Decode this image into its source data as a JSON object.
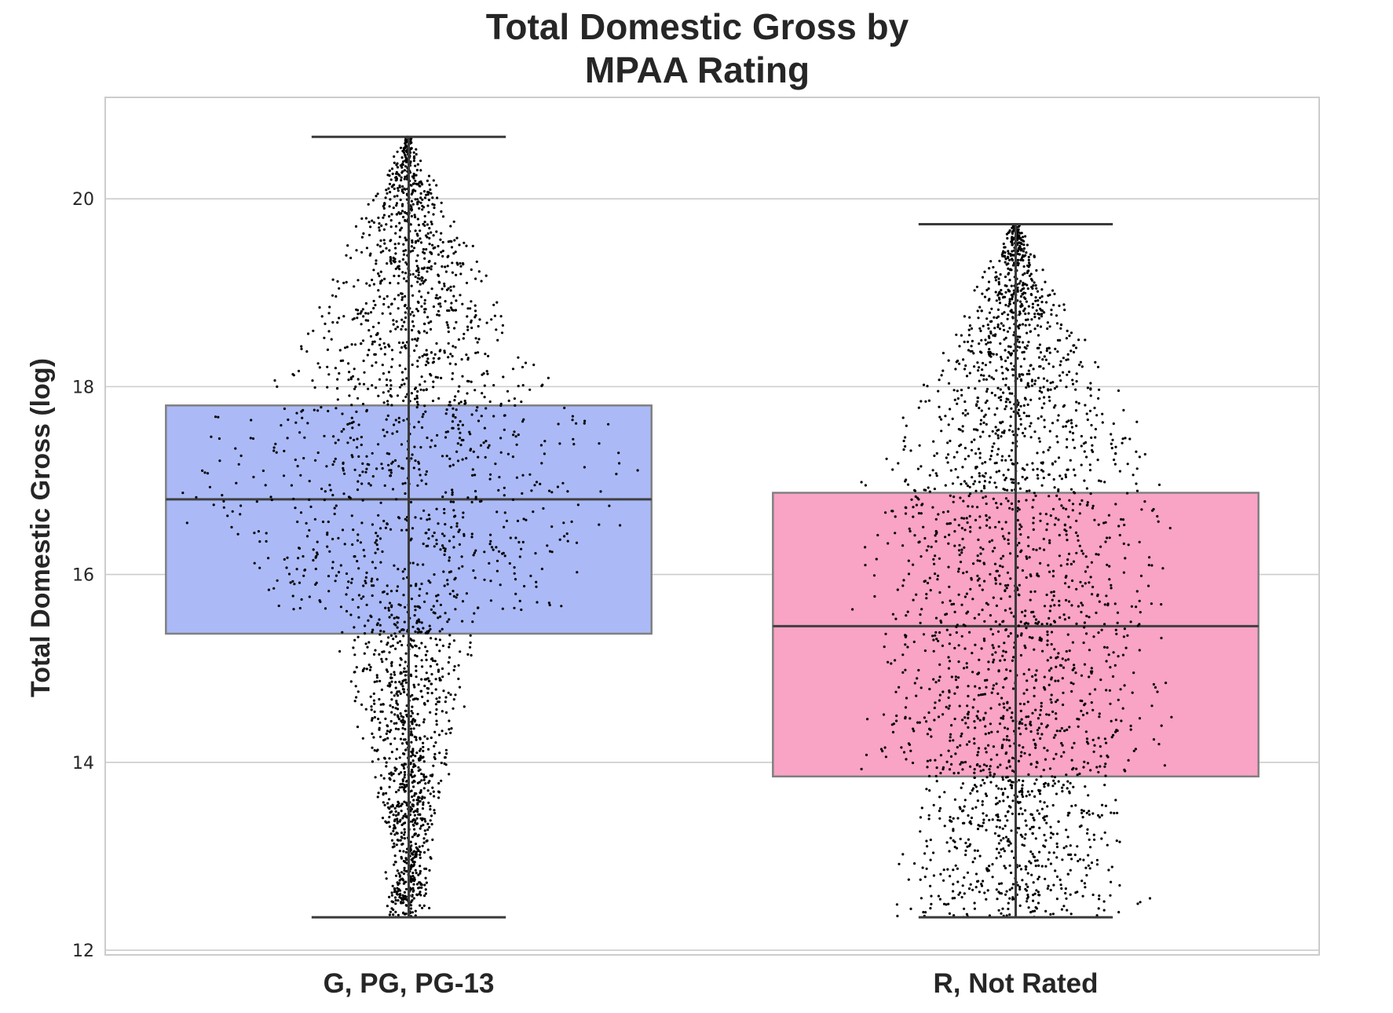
{
  "chart_data": {
    "type": "box",
    "overlay": "swarm",
    "title": [
      "Total Domestic Gross by",
      "MPAA Rating"
    ],
    "xlabel": "",
    "ylabel": "Total Domestic Gross (log)",
    "categories": [
      "G, PG, PG-13",
      "R, Not Rated"
    ],
    "ylim": [
      11.95,
      21.08
    ],
    "yticks": [
      12,
      14,
      16,
      18,
      20
    ],
    "grid": true,
    "legend": "none",
    "boxes": [
      {
        "name": "G, PG, PG-13",
        "whisker_low": 12.35,
        "q1": 15.37,
        "median": 16.8,
        "q3": 17.8,
        "whisker_high": 20.66,
        "color": "#abbaf6"
      },
      {
        "name": "R, Not Rated",
        "whisker_low": 12.35,
        "q1": 13.85,
        "median": 15.45,
        "q3": 16.87,
        "whisker_high": 19.73,
        "color": "#f9a3c5"
      }
    ],
    "colors": {
      "box_edge": "#808080",
      "median_line": "#3f3f3f",
      "whisker": "#3a3a3a",
      "points": "#000000",
      "grid": "#cccccc",
      "text": "#262626"
    }
  }
}
